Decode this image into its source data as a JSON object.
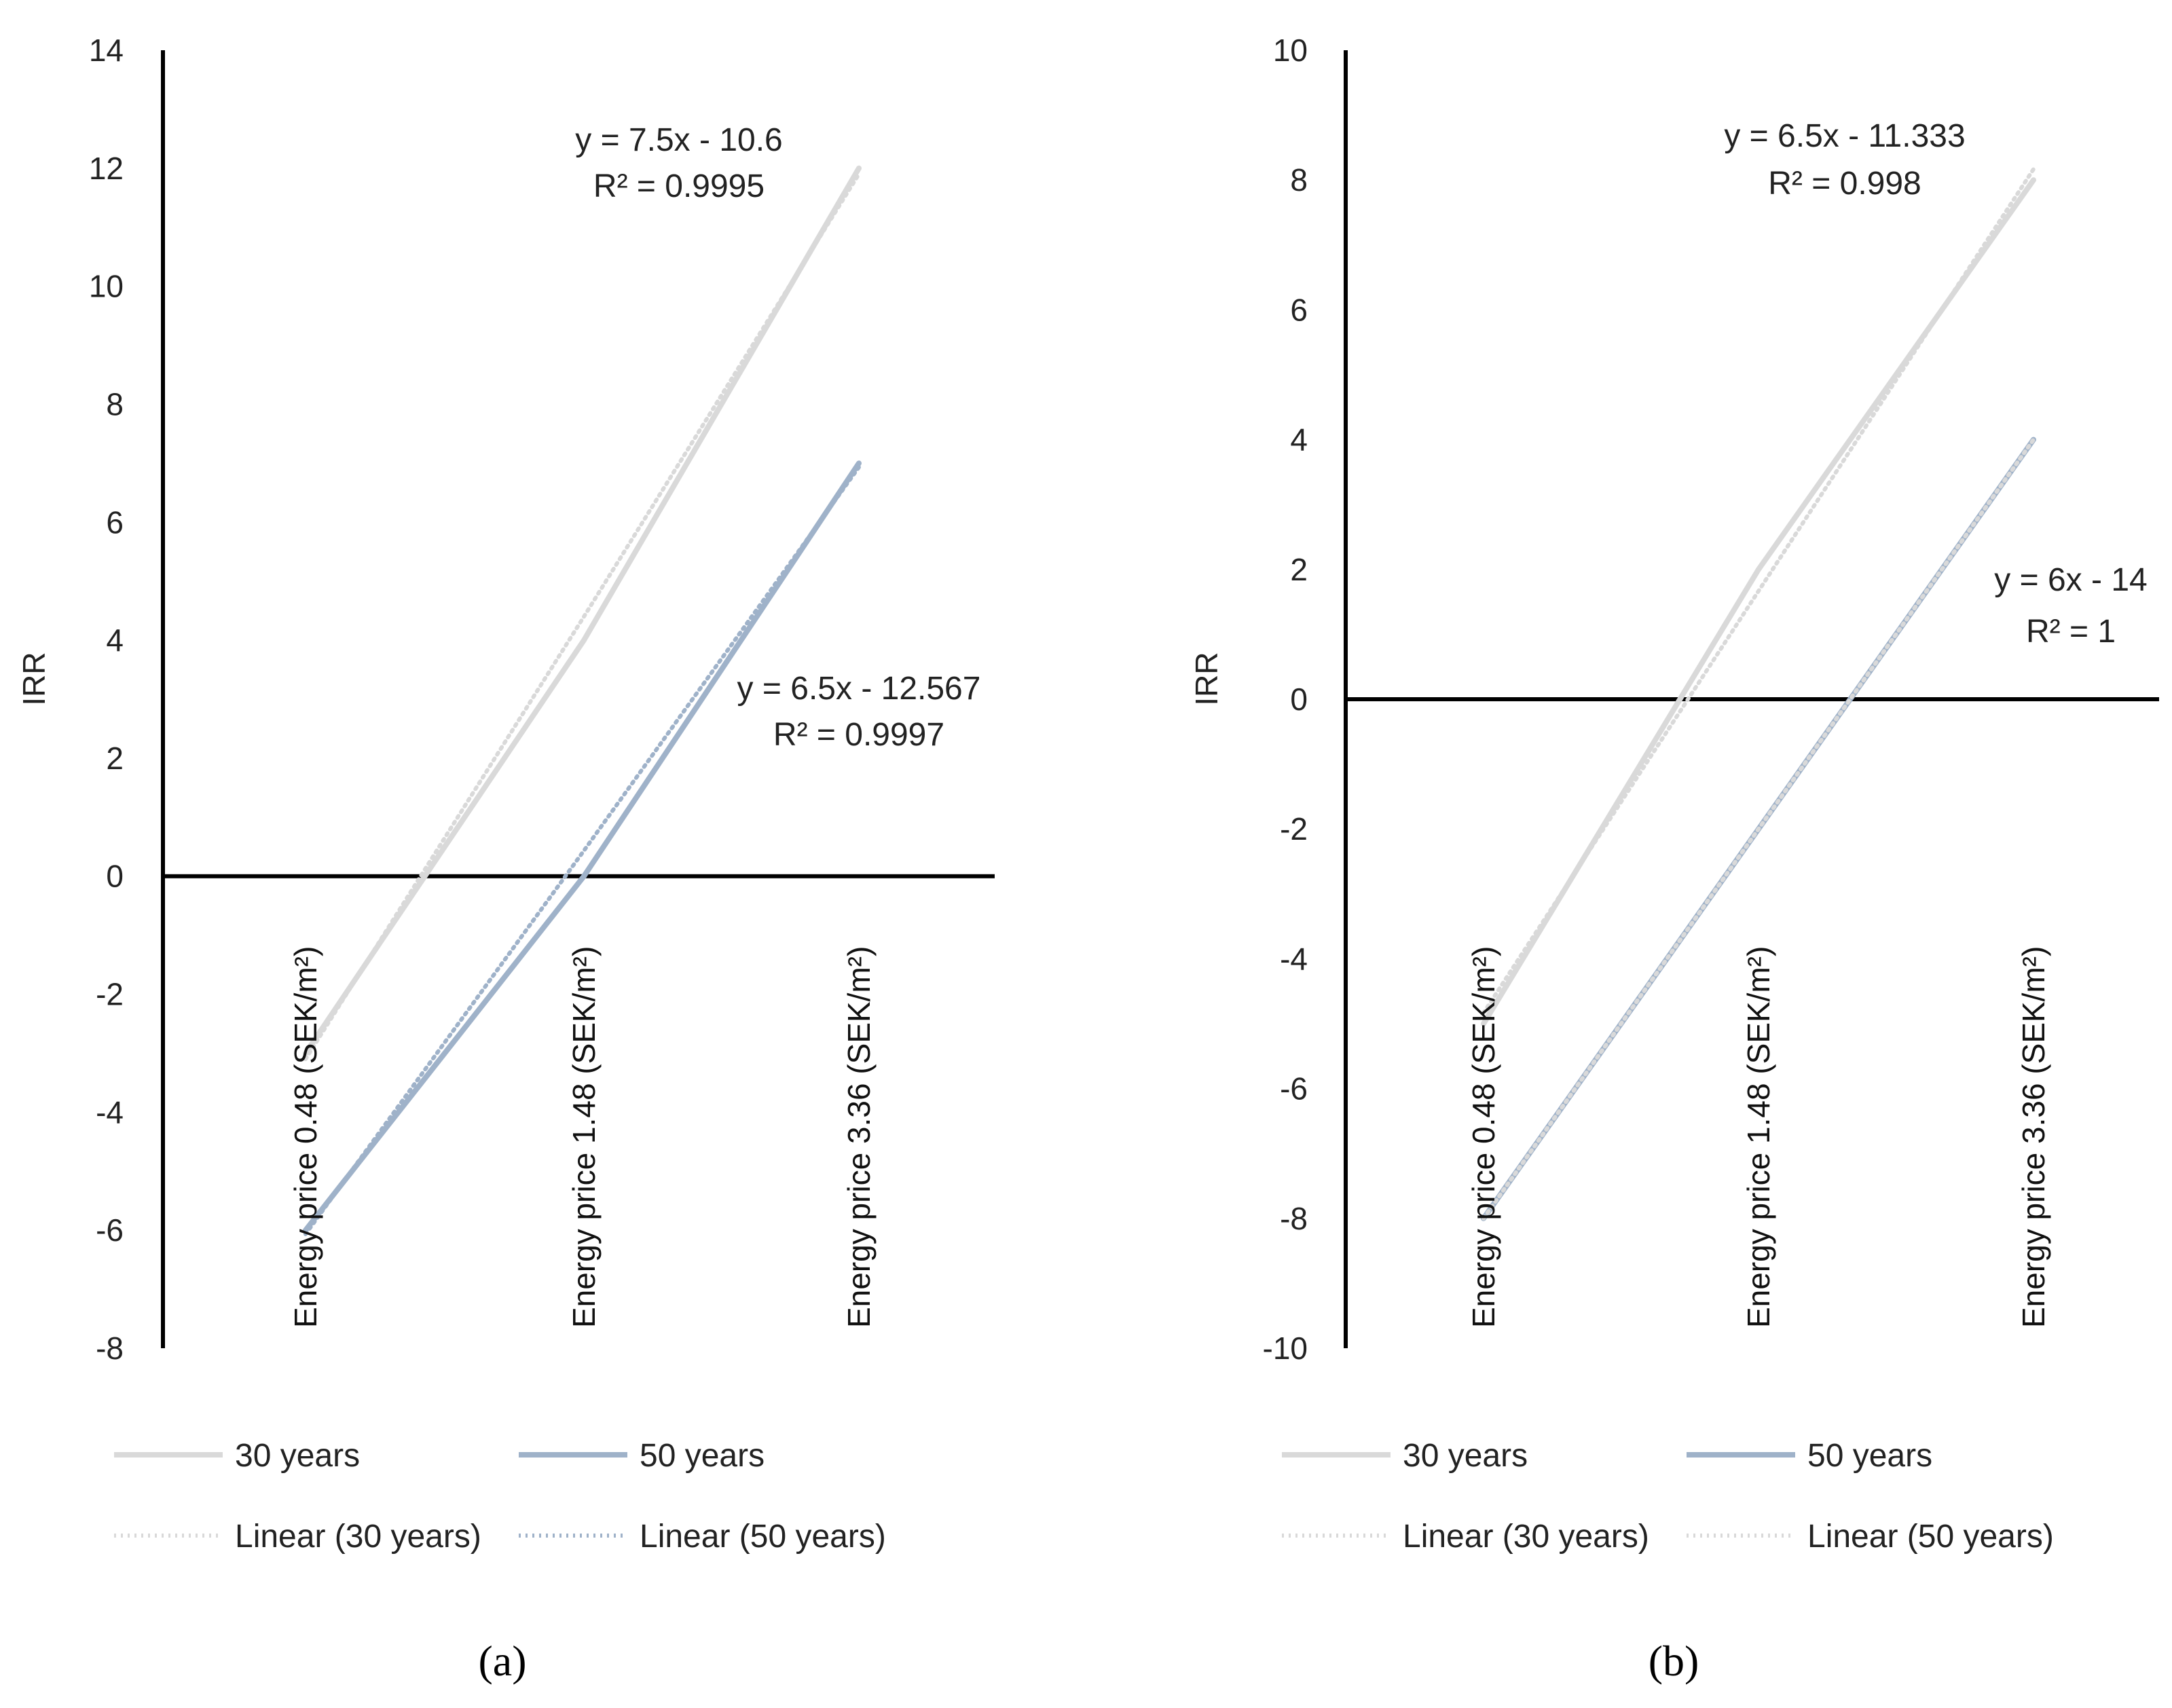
{
  "chart_data": [
    {
      "type": "line",
      "panel_label": "(a)",
      "ylabel": "IRR",
      "ylim": [
        -8,
        14
      ],
      "yticks": [
        14,
        12,
        10,
        8,
        6,
        4,
        2,
        0,
        -2,
        -4,
        -6,
        -8
      ],
      "categories": [
        "Energy price 0.48 (SEK/m²)",
        "Energy price 1.48 (SEK/m²)",
        "Energy price 3.36 (SEK/m²)"
      ],
      "series": [
        {
          "name": "30 years",
          "values": [
            -3,
            4,
            12
          ],
          "color": "#d9d9d9",
          "style": "solid"
        },
        {
          "name": "50 years",
          "values": [
            -6,
            0,
            7
          ],
          "color": "#9fb2c9",
          "style": "solid"
        },
        {
          "name": "Linear (30 years)",
          "trend": {
            "slope": 7.5,
            "intercept": -10.6
          },
          "color": "#d9d9d9",
          "style": "dotted"
        },
        {
          "name": "Linear (50 years)",
          "trend": {
            "slope": 6.5,
            "intercept": -12.567
          },
          "color": "#9fb2c9",
          "style": "dotted"
        }
      ],
      "annotations": [
        {
          "eq": "y = 7.5x - 10.6",
          "r2": "R² = 0.9995"
        },
        {
          "eq": "y = 6.5x - 12.567",
          "r2": "R² = 0.9997"
        }
      ],
      "grid": false,
      "legend_position": "bottom"
    },
    {
      "type": "line",
      "panel_label": "(b)",
      "ylabel": "IRR",
      "ylim": [
        -10,
        10
      ],
      "yticks": [
        10,
        8,
        6,
        4,
        2,
        0,
        -2,
        -4,
        -6,
        -8,
        -10
      ],
      "categories": [
        "Energy price 0.48 (SEK/m²)",
        "Energy price 1.48 (SEK/m²)",
        "Energy price 3.36 (SEK/m²)"
      ],
      "series": [
        {
          "name": "30 years",
          "values": [
            -5,
            2,
            8
          ],
          "color": "#d9d9d9",
          "style": "solid"
        },
        {
          "name": "50 years",
          "values": [
            -8,
            -2,
            4
          ],
          "color": "#9fb2c9",
          "style": "solid"
        },
        {
          "name": "Linear (30 years)",
          "trend": {
            "slope": 6.5,
            "intercept": -11.333
          },
          "color": "#d9d9d9",
          "style": "dotted"
        },
        {
          "name": "Linear (50 years)",
          "trend": {
            "slope": 6,
            "intercept": -14
          },
          "color": "#d9d9d9",
          "style": "dotted"
        }
      ],
      "annotations": [
        {
          "eq": "y = 6.5x - 11.333",
          "r2": "R² = 0.998"
        },
        {
          "eq": "y = 6x - 14",
          "r2": "R² = 1"
        }
      ],
      "grid": false,
      "legend_position": "bottom"
    }
  ]
}
